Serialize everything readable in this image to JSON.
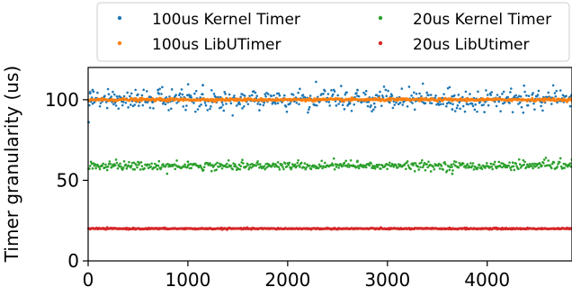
{
  "chart_data": {
    "type": "scatter",
    "title": "",
    "xlabel": "",
    "ylabel": "Timer granularity (us)",
    "xlim": [
      0,
      4850
    ],
    "ylim": [
      0,
      120
    ],
    "xticks": [
      0,
      1000,
      2000,
      3000,
      4000
    ],
    "yticks": [
      0,
      50,
      100
    ],
    "grid": false,
    "legend_position": "top",
    "legend_columns": 2,
    "series": [
      {
        "name": "100us Kernel Timer",
        "color": "#1f77b4",
        "pattern": "noisy-band",
        "x_range": [
          0,
          4850
        ],
        "center": 100,
        "typical_spread": 3,
        "outliers": [
          {
            "x": 5,
            "y": 86
          },
          {
            "x": 20,
            "y": 104
          },
          {
            "x": 45,
            "y": 106
          },
          {
            "x": 1150,
            "y": 109
          },
          {
            "x": 700,
            "y": 106
          },
          {
            "x": 2700,
            "y": 106
          },
          {
            "x": 3650,
            "y": 94
          }
        ]
      },
      {
        "name": "100us LibUTimer",
        "color": "#ff7f0e",
        "pattern": "flat",
        "x_range": [
          0,
          4850
        ],
        "center": 100,
        "typical_spread": 0.4
      },
      {
        "name": "20us Kernel Timer",
        "color": "#2ca02c",
        "pattern": "noisy-band",
        "x_range": [
          0,
          4850
        ],
        "center": 59,
        "typical_spread": 1.3,
        "outliers": [
          {
            "x": 3650,
            "y": 54
          },
          {
            "x": 2700,
            "y": 62
          },
          {
            "x": 1000,
            "y": 61.5
          }
        ]
      },
      {
        "name": "20us LibUtimer",
        "color": "#d62728",
        "pattern": "flat",
        "x_range": [
          0,
          4850
        ],
        "center": 20,
        "typical_spread": 0.2
      }
    ]
  }
}
